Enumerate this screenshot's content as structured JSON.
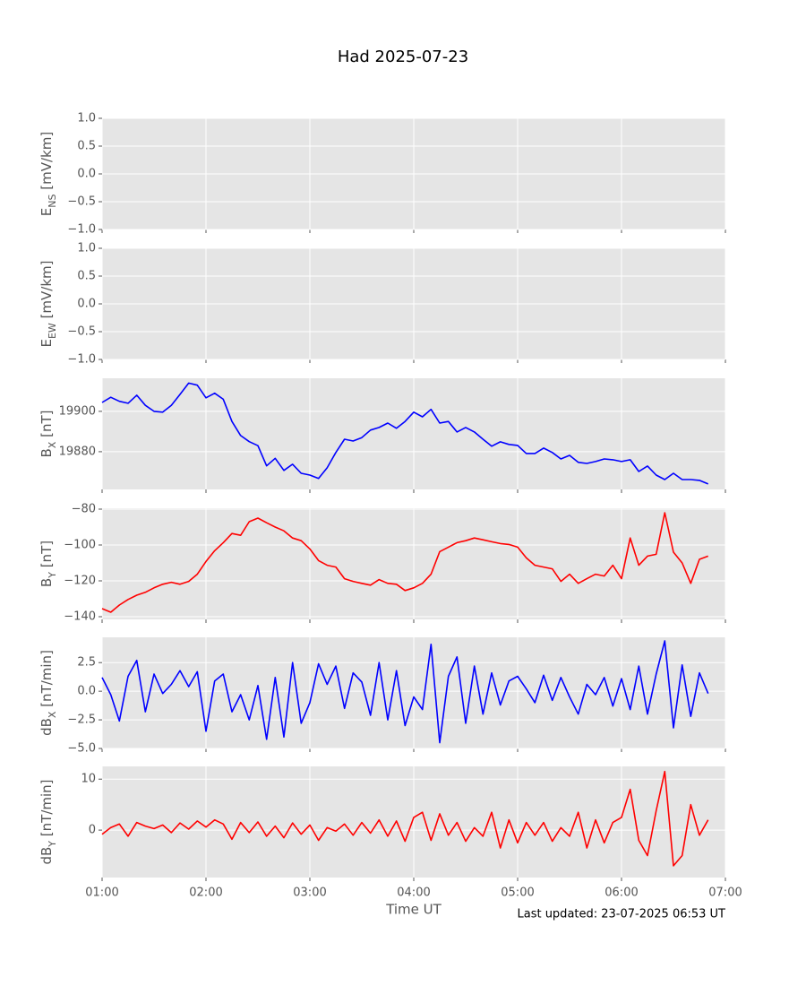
{
  "title": "Had 2025-07-23",
  "xlabel": "Time UT",
  "footer": "Last updated: 23-07-2025 06:53 UT",
  "chart_data": [
    {
      "type": "line",
      "ylabel": [
        "E",
        "NS",
        " [mV/km]"
      ],
      "ylim": [
        -1,
        1
      ],
      "yticks": [
        {
          "value": -1,
          "label": "−1.0"
        },
        {
          "value": -0.5,
          "label": "−0.5"
        },
        {
          "value": 0,
          "label": "0.0"
        },
        {
          "value": 0.5,
          "label": "0.5"
        },
        {
          "value": 1,
          "label": "1.0"
        }
      ],
      "xlim": [
        "01:00",
        "07:00"
      ],
      "xticks": [
        "01:00",
        "02:00",
        "03:00",
        "04:00",
        "05:00",
        "06:00",
        "07:00"
      ],
      "grid": true
    },
    {
      "type": "line",
      "ylabel": [
        "E",
        "EW",
        " [mV/km]"
      ],
      "ylim": [
        -1,
        1
      ],
      "yticks": [
        {
          "value": -1,
          "label": "−1.0"
        },
        {
          "value": -0.5,
          "label": "−0.5"
        },
        {
          "value": 0,
          "label": "0.0"
        },
        {
          "value": 0.5,
          "label": "0.5"
        },
        {
          "value": 1,
          "label": "1.0"
        }
      ],
      "xlim": [
        "01:00",
        "07:00"
      ],
      "xticks": [
        "01:00",
        "02:00",
        "03:00",
        "04:00",
        "05:00",
        "06:00",
        "07:00"
      ],
      "grid": true
    },
    {
      "type": "line",
      "ylabel": [
        "B",
        "X",
        " [nT]"
      ],
      "ylim": [
        19861.3,
        19916.4
      ],
      "yticks": [
        19880,
        19900
      ],
      "xlim": [
        "01:00",
        "07:00"
      ],
      "xticks": [
        "01:00",
        "02:00",
        "03:00",
        "04:00",
        "05:00",
        "06:00",
        "07:00"
      ],
      "grid": true,
      "x": [
        "01:00",
        "01:05",
        "01:10",
        "01:15",
        "01:20",
        "01:25",
        "01:30",
        "01:35",
        "01:40",
        "01:45",
        "01:50",
        "01:55",
        "02:00",
        "02:05",
        "02:10",
        "02:15",
        "02:20",
        "02:25",
        "02:30",
        "02:35",
        "02:40",
        "02:45",
        "02:50",
        "02:55",
        "03:00",
        "03:05",
        "03:10",
        "03:15",
        "03:20",
        "03:25",
        "03:30",
        "03:35",
        "03:40",
        "03:45",
        "03:50",
        "03:55",
        "04:00",
        "04:05",
        "04:10",
        "04:15",
        "04:20",
        "04:25",
        "04:30",
        "04:35",
        "04:40",
        "04:45",
        "04:50",
        "04:55",
        "05:00",
        "05:05",
        "05:10",
        "05:15",
        "05:20",
        "05:25",
        "05:30",
        "05:35",
        "05:40",
        "05:45",
        "05:50",
        "05:55",
        "06:00",
        "06:05",
        "06:10",
        "06:15",
        "06:20",
        "06:25",
        "06:30",
        "06:35",
        "06:40",
        "06:45",
        "06:50"
      ],
      "series": [
        {
          "color": "#0000ff",
          "values": [
            19904.4,
            19907,
            19905,
            19904,
            19908,
            19903,
            19900,
            19899.6,
            19903,
            19908.4,
            19914,
            19913,
            19906.7,
            19909,
            19906,
            19895,
            19888,
            19885,
            19883,
            19873,
            19876.7,
            19870.7,
            19873.8,
            19869.3,
            19868.4,
            19866.7,
            19872,
            19879.6,
            19886.2,
            19885.3,
            19887,
            19890.7,
            19892,
            19894.2,
            19891.6,
            19895,
            19899.6,
            19897.3,
            19901,
            19894.2,
            19895,
            19889.8,
            19892,
            19889.8,
            19886.2,
            19882.7,
            19884.9,
            19883.6,
            19883.1,
            19879.1,
            19879.1,
            19881.8,
            19879.6,
            19876.4,
            19878.2,
            19874.7,
            19874.2,
            19875.1,
            19876.4,
            19876,
            19875.1,
            19876,
            19870.2,
            19872.9,
            19868.4,
            19866.2,
            19869.3,
            19866.2,
            19866.2,
            19865.8,
            19864
          ]
        }
      ]
    },
    {
      "type": "line",
      "ylabel": [
        "B",
        "Y",
        " [nT]"
      ],
      "ylim": [
        -141.5,
        -79.5
      ],
      "yticks": [
        {
          "value": -140,
          "label": "−140"
        },
        {
          "value": -120,
          "label": "−120"
        },
        {
          "value": -100,
          "label": "−100"
        },
        {
          "value": -80,
          "label": "−80"
        }
      ],
      "xlim": [
        "01:00",
        "07:00"
      ],
      "xticks": [
        "01:00",
        "02:00",
        "03:00",
        "04:00",
        "05:00",
        "06:00",
        "07:00"
      ],
      "grid": true,
      "x": [
        "01:00",
        "01:05",
        "01:10",
        "01:15",
        "01:20",
        "01:25",
        "01:30",
        "01:35",
        "01:40",
        "01:45",
        "01:50",
        "01:55",
        "02:00",
        "02:05",
        "02:10",
        "02:15",
        "02:20",
        "02:25",
        "02:30",
        "02:35",
        "02:40",
        "02:45",
        "02:50",
        "02:55",
        "03:00",
        "03:05",
        "03:10",
        "03:15",
        "03:20",
        "03:25",
        "03:30",
        "03:35",
        "03:40",
        "03:45",
        "03:50",
        "03:55",
        "04:00",
        "04:05",
        "04:10",
        "04:15",
        "04:20",
        "04:25",
        "04:30",
        "04:35",
        "04:40",
        "04:45",
        "04:50",
        "04:55",
        "05:00",
        "05:05",
        "05:10",
        "05:15",
        "05:20",
        "05:25",
        "05:30",
        "05:35",
        "05:40",
        "05:45",
        "05:50",
        "05:55",
        "06:00",
        "06:05",
        "06:10",
        "06:15",
        "06:20",
        "06:25",
        "06:30",
        "06:35",
        "06:40",
        "06:45",
        "06:50"
      ],
      "series": [
        {
          "color": "#ff0000",
          "values": [
            -135.5,
            -137.5,
            -133.5,
            -130.4,
            -128,
            -126.4,
            -123.9,
            -121.9,
            -120.8,
            -121.9,
            -120.3,
            -116.3,
            -109.2,
            -103.2,
            -98.7,
            -93.6,
            -94.6,
            -87,
            -85,
            -87.6,
            -90,
            -92.1,
            -96.1,
            -97.6,
            -102.2,
            -108.7,
            -111.3,
            -112.3,
            -118.8,
            -120.3,
            -121.4,
            -122.4,
            -119.3,
            -121.4,
            -121.9,
            -125.4,
            -123.9,
            -121.4,
            -116.3,
            -103.7,
            -101.2,
            -98.7,
            -97.6,
            -96.1,
            -97.1,
            -98.2,
            -99.2,
            -99.7,
            -101.2,
            -107.2,
            -111.3,
            -112.3,
            -113.3,
            -120.3,
            -116.3,
            -121.4,
            -118.8,
            -116.3,
            -117.3,
            -111.3,
            -118.8,
            -96.1,
            -111.3,
            -106.2,
            -105.2,
            -82,
            -104,
            -110,
            -121.4,
            -108,
            -106.2
          ]
        }
      ]
    },
    {
      "type": "line",
      "ylabel": [
        "dB",
        "X",
        " [nT/min]"
      ],
      "ylim": [
        -5.0,
        4.71
      ],
      "yticks": [
        {
          "value": -5,
          "label": "−5.0"
        },
        {
          "value": -2.5,
          "label": "−2.5"
        },
        {
          "value": 0,
          "label": "0.0"
        },
        {
          "value": 2.5,
          "label": "2.5"
        }
      ],
      "xlim": [
        "01:00",
        "07:00"
      ],
      "xticks": [
        "01:00",
        "02:00",
        "03:00",
        "04:00",
        "05:00",
        "06:00",
        "07:00"
      ],
      "grid": true,
      "x": [
        "01:00",
        "01:05",
        "01:10",
        "01:15",
        "01:20",
        "01:25",
        "01:30",
        "01:35",
        "01:40",
        "01:45",
        "01:50",
        "01:55",
        "02:00",
        "02:05",
        "02:10",
        "02:15",
        "02:20",
        "02:25",
        "02:30",
        "02:35",
        "02:40",
        "02:45",
        "02:50",
        "02:55",
        "03:00",
        "03:05",
        "03:10",
        "03:15",
        "03:20",
        "03:25",
        "03:30",
        "03:35",
        "03:40",
        "03:45",
        "03:50",
        "03:55",
        "04:00",
        "04:05",
        "04:10",
        "04:15",
        "04:20",
        "04:25",
        "04:30",
        "04:35",
        "04:40",
        "04:45",
        "04:50",
        "04:55",
        "05:00",
        "05:05",
        "05:10",
        "05:15",
        "05:20",
        "05:25",
        "05:30",
        "05:35",
        "05:40",
        "05:45",
        "05:50",
        "05:55",
        "06:00",
        "06:05",
        "06:10",
        "06:15",
        "06:20",
        "06:25",
        "06:30",
        "06:35",
        "06:40",
        "06:45",
        "06:50"
      ],
      "series": [
        {
          "color": "#0000ff",
          "values": [
            1.2,
            -0.3,
            -2.6,
            1.3,
            2.7,
            -1.8,
            1.5,
            -0.2,
            0.6,
            1.8,
            0.4,
            1.7,
            -3.5,
            0.9,
            1.5,
            -1.8,
            -0.3,
            -2.5,
            0.5,
            -4.2,
            1.2,
            -4.0,
            2.5,
            -2.8,
            -1.0,
            2.4,
            0.6,
            2.2,
            -1.5,
            1.6,
            0.8,
            -2.1,
            2.5,
            -2.5,
            1.8,
            -3.0,
            -0.5,
            -1.6,
            4.1,
            -4.5,
            1.3,
            3.0,
            -2.8,
            2.2,
            -2.0,
            1.6,
            -1.2,
            0.9,
            1.3,
            0.2,
            -1.0,
            1.4,
            -0.8,
            1.2,
            -0.5,
            -2.0,
            0.6,
            -0.3,
            1.2,
            -1.3,
            1.1,
            -1.6,
            2.2,
            -2.0,
            1.5,
            4.4,
            -3.2,
            2.3,
            -2.2,
            1.6,
            -0.2
          ]
        }
      ]
    },
    {
      "type": "line",
      "ylabel": [
        "dB",
        "Y",
        " [nT/min]"
      ],
      "ylim": [
        -9.3,
        12.5
      ],
      "yticks": [
        0,
        10
      ],
      "xlim": [
        "01:00",
        "07:00"
      ],
      "xticks": [
        "01:00",
        "02:00",
        "03:00",
        "04:00",
        "05:00",
        "06:00",
        "07:00"
      ],
      "grid": true,
      "x": [
        "01:00",
        "01:05",
        "01:10",
        "01:15",
        "01:20",
        "01:25",
        "01:30",
        "01:35",
        "01:40",
        "01:45",
        "01:50",
        "01:55",
        "02:00",
        "02:05",
        "02:10",
        "02:15",
        "02:20",
        "02:25",
        "02:30",
        "02:35",
        "02:40",
        "02:45",
        "02:50",
        "02:55",
        "03:00",
        "03:05",
        "03:10",
        "03:15",
        "03:20",
        "03:25",
        "03:30",
        "03:35",
        "03:40",
        "03:45",
        "03:50",
        "03:55",
        "04:00",
        "04:05",
        "04:10",
        "04:15",
        "04:20",
        "04:25",
        "04:30",
        "04:35",
        "04:40",
        "04:45",
        "04:50",
        "04:55",
        "05:00",
        "05:05",
        "05:10",
        "05:15",
        "05:20",
        "05:25",
        "05:30",
        "05:35",
        "05:40",
        "05:45",
        "05:50",
        "05:55",
        "06:00",
        "06:05",
        "06:10",
        "06:15",
        "06:20",
        "06:25",
        "06:30",
        "06:35",
        "06:40",
        "06:45",
        "06:50"
      ],
      "series": [
        {
          "color": "#ff0000",
          "values": [
            -0.8,
            0.5,
            1.2,
            -1.2,
            1.5,
            0.8,
            0.3,
            1.0,
            -0.5,
            1.4,
            0.2,
            1.8,
            0.6,
            2.0,
            1.2,
            -1.8,
            1.5,
            -0.5,
            1.6,
            -1.2,
            0.8,
            -1.5,
            1.4,
            -0.8,
            1.0,
            -2.0,
            0.5,
            -0.2,
            1.2,
            -1.0,
            1.5,
            -0.6,
            2.0,
            -1.2,
            1.8,
            -2.2,
            2.5,
            3.5,
            -2.0,
            3.2,
            -1.0,
            1.5,
            -2.2,
            0.5,
            -1.2,
            3.5,
            -3.5,
            2.0,
            -2.5,
            1.5,
            -1.0,
            1.5,
            -2.2,
            0.5,
            -1.2,
            3.5,
            -3.5,
            2.0,
            -2.5,
            1.5,
            2.5,
            8.0,
            -2.0,
            -5.0,
            3.8,
            11.5,
            -7.0,
            -5.0,
            5.0,
            -1.0,
            2.0
          ]
        }
      ]
    }
  ]
}
